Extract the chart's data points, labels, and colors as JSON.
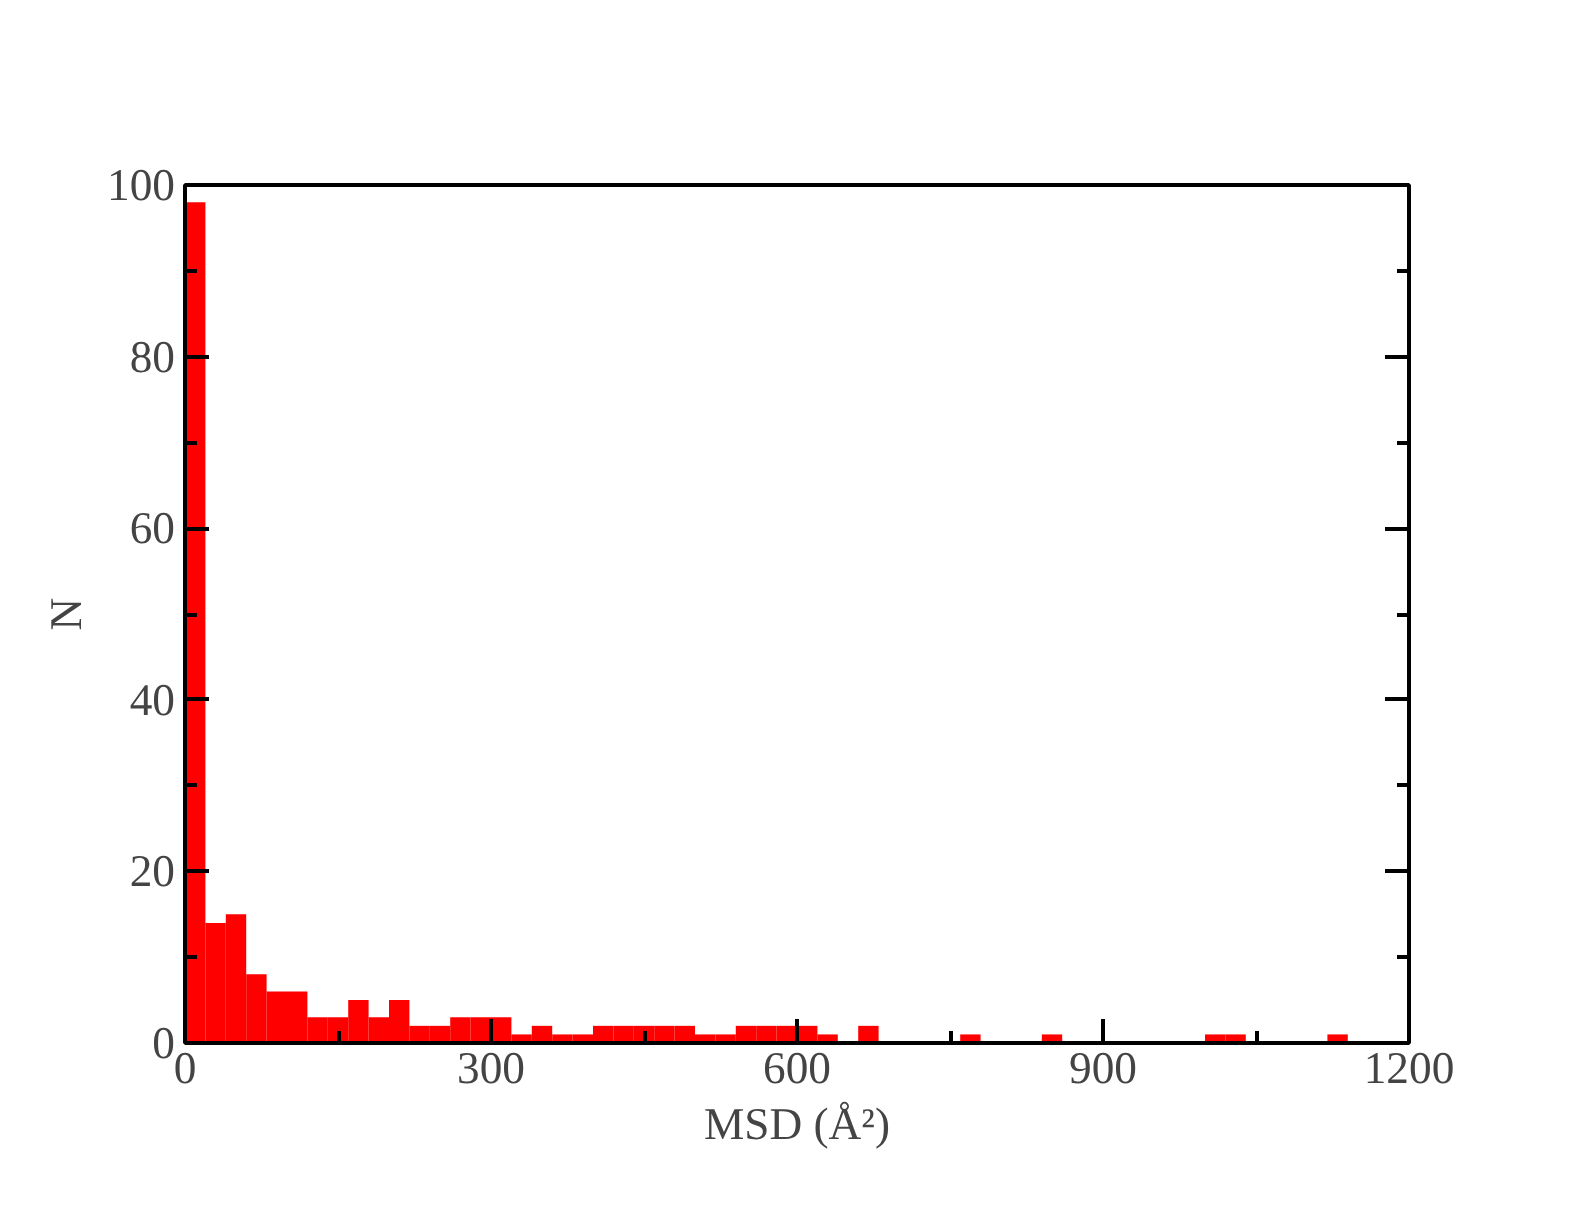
{
  "chart_data": {
    "type": "histogram",
    "xlabel": "MSD (Å²)",
    "ylabel": "N",
    "color": "#ff0000",
    "bins": [
      0,
      20,
      40,
      60,
      80,
      100,
      120,
      140,
      160,
      180,
      200,
      220,
      240,
      260,
      280,
      300,
      320,
      340,
      360,
      380,
      400,
      420,
      440,
      460,
      480,
      500,
      520,
      540,
      560,
      580,
      600,
      620,
      640,
      660,
      680,
      700,
      720,
      740,
      760,
      780,
      800,
      820,
      840,
      860,
      880,
      900,
      920,
      940,
      960,
      980,
      1000,
      1020,
      1040,
      1060,
      1080,
      1100,
      1120,
      1140,
      1160,
      1180,
      1200
    ],
    "values": [
      98,
      14,
      15,
      8,
      6,
      6,
      3,
      3,
      5,
      3,
      5,
      2,
      2,
      3,
      3,
      3,
      1,
      2,
      1,
      1,
      2,
      2,
      2,
      2,
      2,
      1,
      1,
      2,
      2,
      2,
      2,
      1,
      0,
      2,
      0,
      0,
      0,
      0,
      1,
      0,
      0,
      0,
      1,
      0,
      0,
      0,
      0,
      0,
      0,
      0,
      1,
      1,
      0,
      0,
      0,
      0,
      1,
      0,
      0,
      0
    ],
    "xlim": [
      0,
      1200
    ],
    "ylim": [
      0,
      100
    ],
    "xticks": [
      0,
      300,
      600,
      900,
      1200
    ],
    "yticks": [
      0,
      20,
      40,
      60,
      80,
      100
    ],
    "grid": false
  }
}
